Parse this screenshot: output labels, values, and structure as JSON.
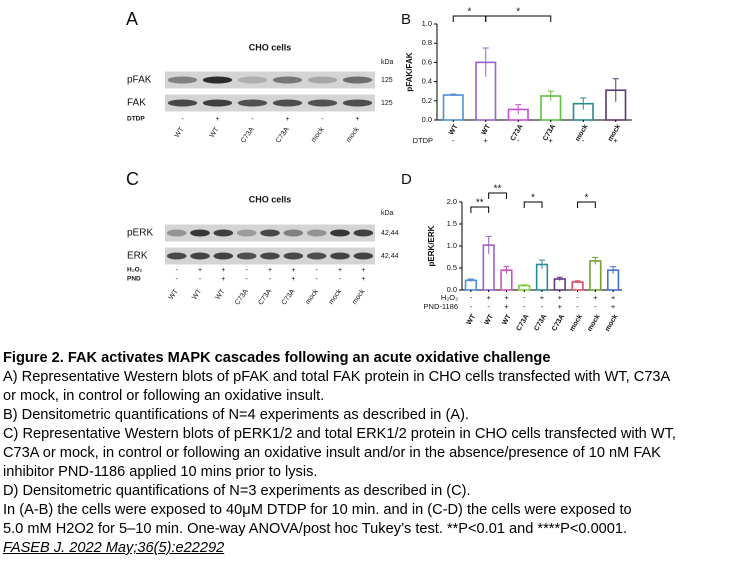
{
  "blots": [
    {
      "letter": "A",
      "title": "CHO cells",
      "kda": "kDa",
      "rows": [
        {
          "name": "pFAK",
          "size": "125"
        },
        {
          "name": "FAK",
          "size": "125"
        }
      ],
      "treatments": [
        {
          "name": "DTDP",
          "values": [
            "-",
            "+",
            "-",
            "+",
            "-",
            "+"
          ]
        }
      ],
      "lanes": [
        "WT",
        "WT",
        "C73A",
        "C73A",
        "mock",
        "mock"
      ]
    },
    {
      "letter": "C",
      "title": "CHO cells",
      "kda": "kDa",
      "rows": [
        {
          "name": "pERK",
          "size": "42,44"
        },
        {
          "name": "ERK",
          "size": "42,44"
        }
      ],
      "treatments": [
        {
          "name": "H₂O₂",
          "values": [
            "-",
            "+",
            "+",
            "-",
            "+",
            "+",
            "-",
            "+",
            "+"
          ]
        },
        {
          "name": "PND",
          "values": [
            "-",
            "-",
            "+",
            "-",
            "-",
            "+",
            "-",
            "-",
            "+"
          ]
        }
      ],
      "lanes": [
        "WT",
        "WT",
        "WT",
        "C73A",
        "C73A",
        "C73A",
        "mock",
        "mock",
        "mock"
      ]
    }
  ],
  "chart_data": [
    {
      "type": "bar",
      "letter": "B",
      "y_label": "pFAK/FAK",
      "categories": [
        "WT",
        "WT",
        "C73A",
        "C73A",
        "mock",
        "mock"
      ],
      "treatments": [
        {
          "name": "DTDP",
          "values": [
            "-",
            "+",
            "-",
            "+",
            "-",
            "+"
          ]
        }
      ],
      "values": [
        0.26,
        0.6,
        0.11,
        0.25,
        0.17,
        0.31
      ],
      "errors": [
        0.01,
        0.15,
        0.05,
        0.05,
        0.06,
        0.12
      ],
      "colors": [
        "#4f8fd6",
        "#9a5fd0",
        "#c94fc9",
        "#5fbf3f",
        "#2b8a8a",
        "#5a3a6a"
      ],
      "ylim": [
        0,
        1.0
      ],
      "yticks": [
        {
          "value": 0,
          "label": "0.0"
        },
        0.2,
        0.4,
        0.6,
        0.8,
        {
          "value": 1.0,
          "label": "1.0"
        }
      ],
      "significance": [
        "*",
        "*"
      ]
    },
    {
      "type": "bar",
      "letter": "D",
      "y_label": "pERK/ERK",
      "categories": [
        "WT",
        "WT",
        "WT",
        "C73A",
        "C73A",
        "C73A",
        "mock",
        "mock",
        "mock"
      ],
      "treatments": [
        {
          "name": "H₂O₂",
          "values": [
            "-",
            "+",
            "+",
            "-",
            "+",
            "+",
            "-",
            "+",
            "+"
          ]
        },
        {
          "name": "PND-1186",
          "values": [
            "-",
            "-",
            "+",
            "-",
            "-",
            "+",
            "-",
            "-",
            "+"
          ]
        }
      ],
      "values": [
        0.22,
        1.02,
        0.45,
        0.1,
        0.58,
        0.25,
        0.18,
        0.66,
        0.45
      ],
      "errors": [
        0.03,
        0.2,
        0.08,
        0.02,
        0.1,
        0.04,
        0.03,
        0.08,
        0.08
      ],
      "colors": [
        "#4f8fd6",
        "#9a5fd0",
        "#c94fc9",
        "#7fcf3f",
        "#2b8aa0",
        "#5a3a8a",
        "#d9506a",
        "#6fa030",
        "#3f6fd0"
      ],
      "ylim": [
        0,
        2.0
      ],
      "yticks": [
        {
          "value": 0,
          "label": "0.0"
        },
        0.5,
        {
          "value": 1.0,
          "label": "1.0"
        },
        1.5,
        {
          "value": 2.0,
          "label": "2.0"
        }
      ],
      "significance": [
        "**",
        "**",
        "*",
        "*"
      ]
    }
  ],
  "caption": {
    "title": "Figure 2. FAK activates MAPK cascades following an acute oxidative challenge",
    "lines": [
      "A) Representative Western blots of pFAK and total FAK protein in CHO cells transfected with WT, C73A",
      "or mock, in control or following an oxidative insult.",
      "B) Densitometric quantifications of N=4 experiments as described in (A).",
      "C) Representative Western blots of pERK1/2 and total ERK1/2 protein in CHO cells transfected with WT,",
      "C73A or mock, in control or following an oxidative insult and/or in the absence/presence of 10 nM FAK",
      "inhibitor PND-1186 applied 10 mins prior to lysis.",
      "D) Densitometric quantifications of N=3 experiments as described in (C).",
      "In (A-B) the cells were exposed to 40μM DTDP for 10 min. and in (C-D) the cells were exposed to",
      "5.0 mM H2O2 for 5–10 min. One-way ANOVA/post hoc Tukey’s test. **P<0.01 and ****P<0.0001."
    ],
    "citation": "FASEB J. 2022 May;36(5):e22292"
  }
}
